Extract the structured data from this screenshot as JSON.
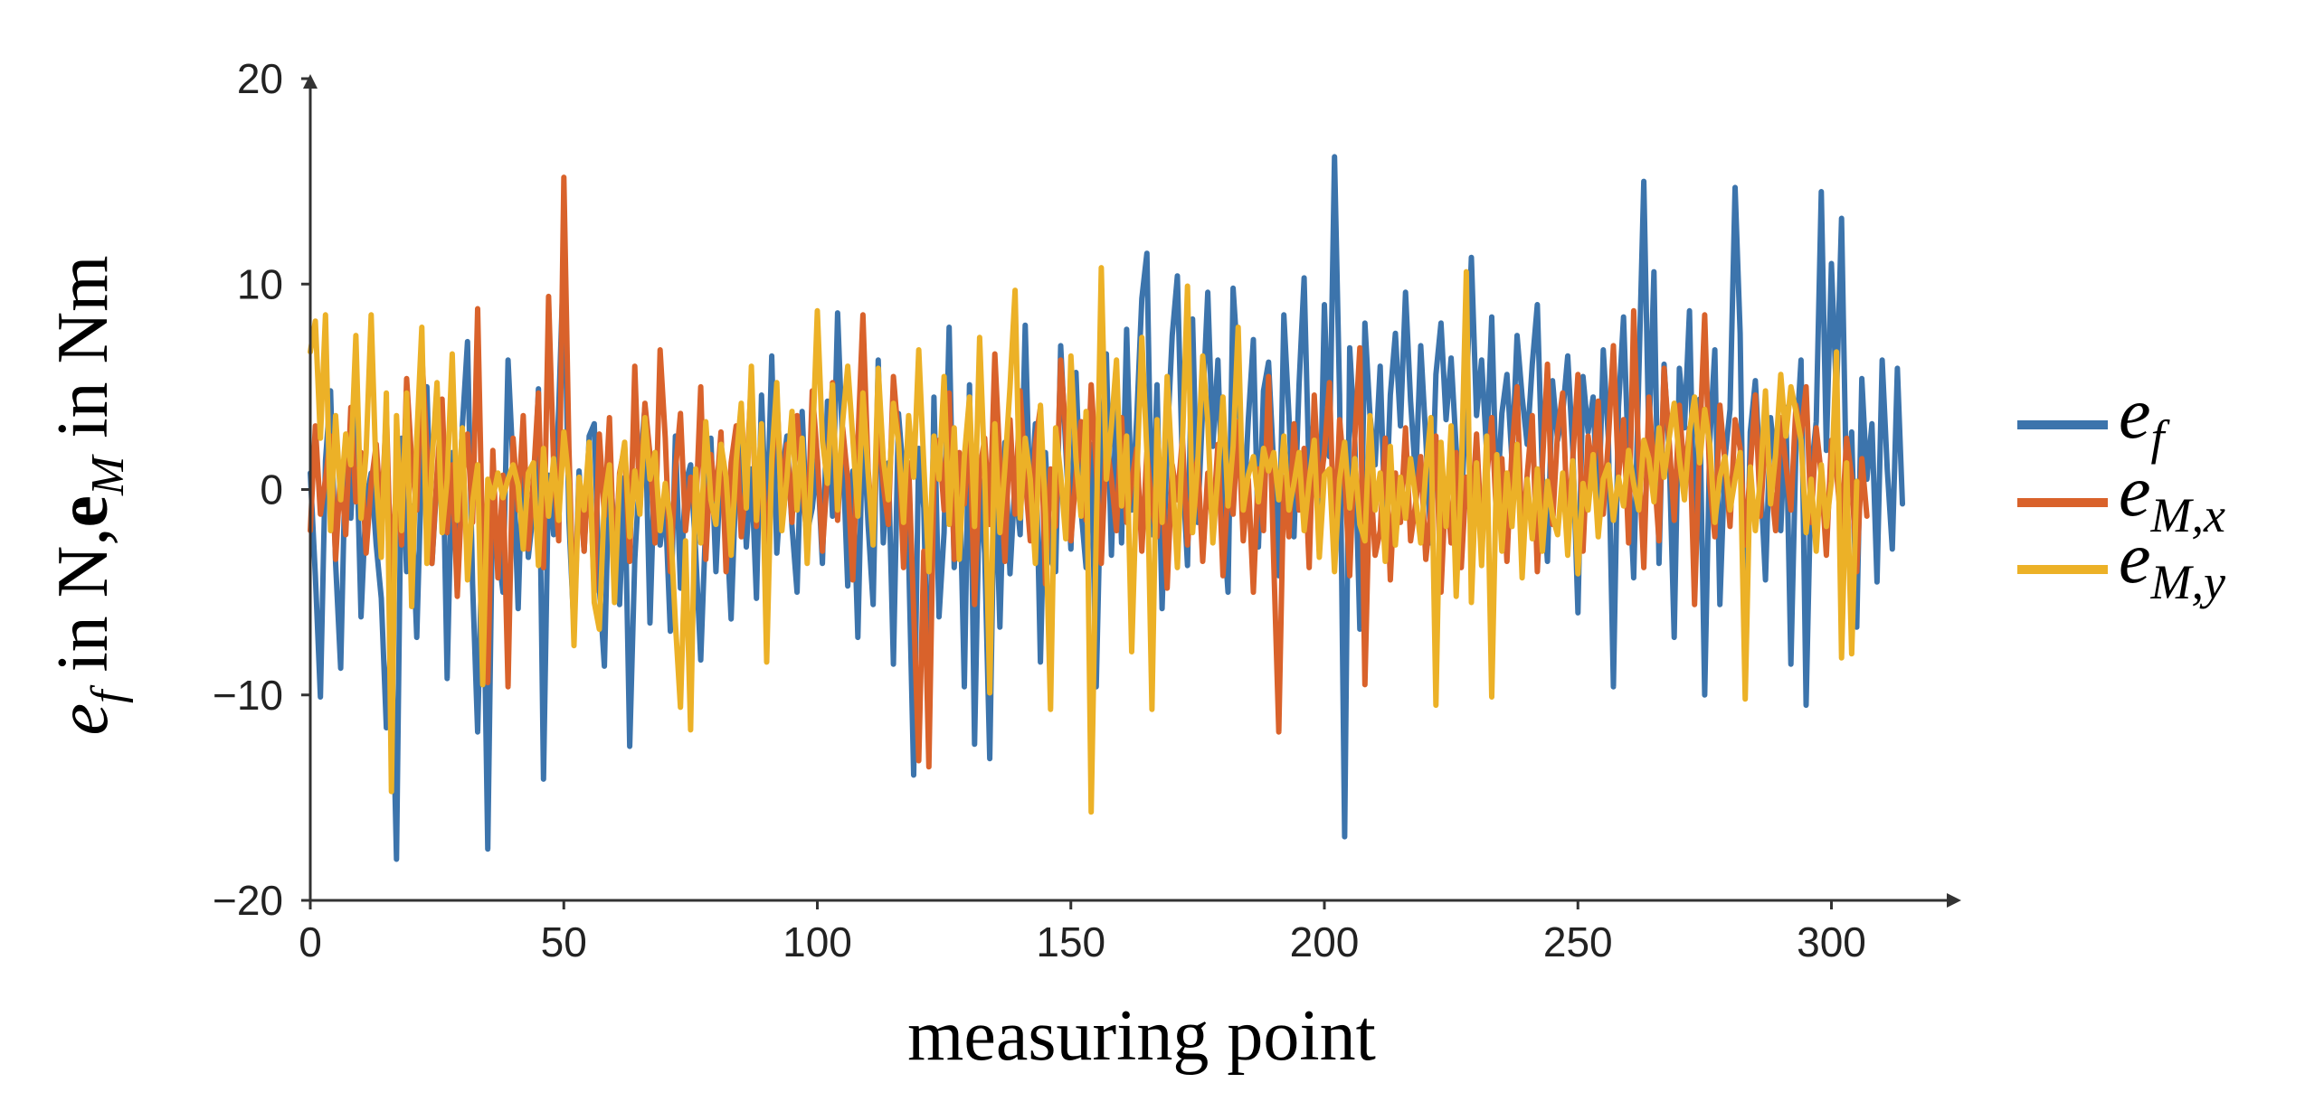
{
  "chart_data": {
    "type": "line",
    "xlabel": "measuring point",
    "ylabel": "e_f in N,e_M in Nm",
    "xlim": [
      0,
      323
    ],
    "ylim": [
      -20,
      20
    ],
    "xticks": [
      0,
      50,
      100,
      150,
      200,
      250,
      300
    ],
    "yticks": [
      20,
      10,
      0,
      -10,
      -20
    ],
    "xtick_labels": [
      "0",
      "50",
      "100",
      "150",
      "200",
      "250",
      "300"
    ],
    "ytick_labels": [
      "20",
      "10",
      "0",
      "−10",
      "−20"
    ],
    "grid": false,
    "legend_position": "right",
    "series": [
      {
        "name": "e_f",
        "legend_base": "e",
        "legend_sub": "f",
        "color": "#3c74ac",
        "values": [
          0.8,
          -4.2,
          -10.1,
          1.4,
          4.8,
          -3.6,
          -8.7,
          2.2,
          -1.4,
          3.5,
          -6.2,
          -0.5,
          0.8,
          -2.7,
          -5.3,
          -11.6,
          -6.8,
          -18.0,
          2.5,
          -4.0,
          -0.8,
          -7.2,
          1.6,
          5.0,
          -3.6,
          0.5,
          4.0,
          -9.2,
          1.8,
          -2.5,
          3.1,
          7.2,
          -4.6,
          -11.8,
          -1.5,
          -17.5,
          0.4,
          -2.9,
          -5.0,
          6.3,
          1.1,
          -5.8,
          2.7,
          -3.3,
          -1.0,
          4.9,
          -14.1,
          0.7,
          -2.2,
          3.9,
          11.5,
          -1.5,
          -6.8,
          0.9,
          -3.0,
          2.6,
          3.2,
          -4.7,
          -8.6,
          1.5,
          -2.3,
          -5.6,
          0.6,
          -12.5,
          -3.4,
          1.0,
          4.0,
          -6.5,
          1.8,
          -2.7,
          -0.7,
          -6.9,
          2.6,
          -4.8,
          0.3,
          1.2,
          -3.0,
          -8.3,
          -1.5,
          2.5,
          -4.0,
          1.4,
          -1.2,
          -6.3,
          0.7,
          3.1,
          -2.8,
          1.0,
          -5.3,
          4.6,
          -2.3,
          6.5,
          -3.1,
          0.7,
          2.6,
          -1.8,
          -5.0,
          3.8,
          -2.1,
          -0.9,
          1.5,
          -3.6,
          4.3,
          -1.3,
          8.6,
          2.0,
          -4.7,
          0.9,
          -7.2,
          3.5,
          -1.7,
          -5.6,
          6.3,
          -2.6,
          1.3,
          -8.5,
          3.7,
          0.6,
          -3.2,
          -13.9,
          2.0,
          -0.9,
          -11.6,
          4.5,
          -6.2,
          -2.1,
          7.9,
          -3.8,
          1.3,
          -9.6,
          5.1,
          -12.4,
          0.5,
          -3.1,
          -13.1,
          1.7,
          -6.7,
          2.3,
          -4.1,
          0.5,
          -2.2,
          8.0,
          -1.3,
          3.2,
          -8.4,
          1.8,
          -3.4,
          -4.0,
          7.0,
          2.0,
          -2.9,
          5.7,
          -1.0,
          -3.8,
          2.2,
          -9.6,
          1.3,
          6.6,
          -3.2,
          4.6,
          -2.6,
          7.8,
          -1.0,
          3.5,
          9.3,
          11.5,
          -2.2,
          5.1,
          -5.8,
          2.3,
          7.5,
          10.4,
          1.0,
          -3.7,
          8.3,
          -1.6,
          4.0,
          9.6,
          2.1,
          6.3,
          -1.3,
          -5.0,
          9.8,
          5.9,
          -1.6,
          3.4,
          7.3,
          -2.8,
          4.8,
          6.2,
          1.1,
          -4.2,
          8.5,
          3.6,
          -2.3,
          5.1,
          10.3,
          0.5,
          3.6,
          -3.0,
          9.0,
          1.6,
          16.2,
          4.6,
          -16.9,
          6.9,
          2.4,
          -6.8,
          8.1,
          3.6,
          1.2,
          6.0,
          -2.0,
          4.6,
          7.6,
          3.1,
          9.6,
          4.3,
          0.5,
          7.0,
          2.5,
          -2.6,
          5.6,
          8.1,
          3.4,
          6.4,
          2.0,
          -1.0,
          4.5,
          11.3,
          3.6,
          6.3,
          1.8,
          8.4,
          -0.8,
          3.7,
          5.6,
          1.4,
          7.5,
          4.5,
          2.2,
          6.1,
          9.0,
          0.6,
          -3.5,
          5.3,
          2.4,
          3.7,
          6.5,
          1.9,
          -6.0,
          5.5,
          2.8,
          4.5,
          -1.7,
          6.8,
          2.5,
          -9.6,
          4.0,
          8.4,
          1.1,
          -4.3,
          5.4,
          15.0,
          2.3,
          10.6,
          -3.6,
          6.1,
          1.8,
          -7.2,
          5.9,
          3.0,
          8.7,
          -2.7,
          4.4,
          -10.0,
          2.3,
          6.8,
          -5.6,
          1.5,
          3.9,
          14.7,
          7.6,
          -9.0,
          2.8,
          5.3,
          0.6,
          -4.4,
          3.5,
          1.1,
          -2.0,
          4.0,
          -8.5,
          2.1,
          6.3,
          -10.5,
          0.8,
          3.3,
          14.5,
          1.9,
          11.0,
          4.5,
          13.2,
          -0.6,
          2.8,
          -6.7,
          5.4,
          0.5,
          3.2,
          -4.5,
          6.3,
          1.0,
          -2.9,
          5.9,
          -0.7
        ]
      },
      {
        "name": "e_M,x",
        "legend_base": "e",
        "legend_sub": "M,x",
        "color": "#d9622b",
        "values": [
          -2.0,
          3.1,
          -1.2,
          0.5,
          2.6,
          -3.4,
          1.0,
          -2.2,
          4.0,
          -0.6,
          1.8,
          -3.1,
          0.3,
          2.2,
          -1.5,
          3.8,
          -4.8,
          0.6,
          -2.7,
          5.4,
          1.4,
          -1.0,
          6.6,
          2.0,
          -3.6,
          0.8,
          4.4,
          -2.1,
          1.2,
          -5.2,
          0.4,
          2.7,
          -1.6,
          8.8,
          -3.0,
          -9.4,
          1.9,
          -4.3,
          0.7,
          -9.6,
          2.5,
          -1.0,
          3.6,
          -2.9,
          0.5,
          4.7,
          -3.8,
          9.4,
          1.2,
          -2.5,
          15.2,
          2.0,
          -6.8,
          0.4,
          -3.0,
          1.6,
          -5.0,
          2.7,
          -1.3,
          3.5,
          -4.3,
          0.8,
          2.1,
          -3.5,
          6.0,
          -1.1,
          4.2,
          1.7,
          -2.6,
          6.8,
          2.5,
          -4.0,
          0.9,
          3.7,
          -2.0,
          0.6,
          -1.3,
          5.0,
          -3.4,
          1.7,
          -0.5,
          2.8,
          -4.0,
          1.3,
          3.1,
          -2.3,
          0.4,
          5.4,
          -1.8,
          2.1,
          -3.2,
          1.0,
          4.5,
          -0.4,
          2.2,
          -1.6,
          3.6,
          0.3,
          -2.5,
          4.8,
          1.6,
          -3.0,
          0.8,
          5.2,
          -1.5,
          3.0,
          0.5,
          -4.4,
          2.3,
          8.5,
          1.0,
          -2.3,
          3.7,
          0.2,
          -1.7,
          5.5,
          2.5,
          -3.8,
          1.3,
          -5.9,
          -13.2,
          -3.0,
          -13.5,
          0.5,
          2.4,
          -1.0,
          4.7,
          -3.4,
          1.8,
          -0.7,
          3.2,
          -5.6,
          0.9,
          2.5,
          -1.7,
          6.6,
          1.3,
          -3.5,
          3.4,
          -1.2,
          4.8,
          0.6,
          -2.5,
          2.2,
          4.0,
          -4.6,
          1.0,
          -1.8,
          6.3,
          2.8,
          -2.5,
          0.7,
          3.3,
          -1.5,
          5.1,
          1.1,
          -3.6,
          2.4,
          0.5,
          -2.0,
          3.5,
          -1.6,
          0.4,
          2.0,
          -3.0,
          1.8,
          -0.8,
          -2.3,
          0.6,
          -4.8,
          1.2,
          -0.5,
          2.5,
          -2.7,
          0.3,
          1.5,
          -3.5,
          0.8,
          -1.8,
          2.2,
          -4.2,
          0.1,
          -1.2,
          3.3,
          -2.5,
          0.5,
          -5.0,
          1.0,
          -2.0,
          5.5,
          -3.5,
          -11.8,
          0.6,
          -2.3,
          3.2,
          -1.0,
          2.0,
          -3.8,
          4.6,
          -0.3,
          1.8,
          5.2,
          -2.8,
          3.4,
          0.6,
          -4.2,
          2.5,
          6.9,
          -9.5,
          1.0,
          -3.2,
          -2.0,
          2.5,
          -4.4,
          0.8,
          -1.6,
          3.0,
          -2.5,
          -0.7,
          1.6,
          -3.4,
          -1.0,
          2.6,
          -5.0,
          0.5,
          -2.6,
          1.8,
          -3.8,
          0.6,
          -1.5,
          2.7,
          -2.2,
          0.5,
          3.5,
          -1.7,
          1.5,
          -3.5,
          2.0,
          5.0,
          -2.6,
          0.7,
          3.6,
          -4.0,
          1.2,
          6.1,
          -1.7,
          2.8,
          4.7,
          -2.0,
          1.5,
          5.6,
          -3.0,
          2.6,
          0.8,
          4.3,
          -1.2,
          2.4,
          7.0,
          0.6,
          3.4,
          -2.6,
          8.7,
          1.5,
          -3.8,
          4.5,
          1.0,
          -2.5,
          5.9,
          2.4,
          -1.5,
          4.1,
          0.5,
          3.0,
          -5.6,
          2.2,
          8.5,
          0.3,
          -2.3,
          4.1,
          1.3,
          -1.8,
          3.4,
          2.0,
          -2.7,
          1.0,
          4.6,
          -1.3,
          2.7,
          0.5,
          -2.0,
          3.5,
          1.2,
          -1.0,
          4.1,
          2.6,
          5.0,
          -1.6,
          3.0,
          0.7,
          -3.2,
          2.4,
          0.9,
          -2.0,
          2.5,
          0.6,
          -4.0,
          1.5,
          -1.3
        ]
      },
      {
        "name": "e_M,y",
        "legend_base": "e",
        "legend_sub": "M,y",
        "color": "#ecb127",
        "values": [
          6.7,
          8.2,
          2.5,
          8.5,
          -2.0,
          3.6,
          -0.5,
          2.7,
          1.2,
          7.5,
          -1.4,
          1.8,
          8.5,
          0.5,
          -3.3,
          4.7,
          -14.7,
          3.6,
          -2.0,
          4.7,
          -5.7,
          2.5,
          7.9,
          -3.6,
          1.3,
          5.2,
          -2.1,
          0.5,
          6.6,
          -1.5,
          3.0,
          -4.4,
          -0.6,
          1.2,
          -9.5,
          0.5,
          -0.4,
          0.8,
          -0.4,
          0.5,
          1.2,
          0.2,
          -2.9,
          0.8,
          1.3,
          -3.7,
          2.0,
          -1.3,
          1.5,
          -1.5,
          2.8,
          0.4,
          -7.6,
          0.6,
          -1.0,
          2.3,
          -5.5,
          -6.8,
          -0.5,
          1.2,
          -5.5,
          0.6,
          2.3,
          -2.3,
          0.9,
          -1.2,
          3.5,
          0.5,
          1.8,
          -2.0,
          0.3,
          -1.5,
          -6.5,
          -10.6,
          -2.5,
          -11.7,
          1.0,
          -2.6,
          3.3,
          -0.5,
          -1.7,
          2.2,
          0.6,
          -3.2,
          1.4,
          4.2,
          -0.9,
          6.0,
          -1.5,
          3.2,
          -8.4,
          1.5,
          5.2,
          -2.0,
          0.6,
          3.8,
          -1.0,
          2.5,
          -3.6,
          1.8,
          8.7,
          2.4,
          0.3,
          5.1,
          -1.0,
          3.3,
          6.0,
          2.5,
          -1.3,
          4.7,
          0.8,
          -2.7,
          5.9,
          1.5,
          -0.5,
          4.2,
          2.3,
          -1.6,
          3.6,
          0.6,
          6.8,
          1.2,
          -4.0,
          2.6,
          0.5,
          5.5,
          -1.7,
          3.0,
          -3.4,
          1.6,
          4.5,
          -1.8,
          7.4,
          0.8,
          -9.9,
          3.2,
          -2.1,
          1.1,
          5.0,
          9.7,
          -1.4,
          2.5,
          0.5,
          -3.6,
          4.1,
          -1.2,
          -10.7,
          3.0,
          0.7,
          -2.4,
          6.5,
          1.5,
          -1.3,
          3.8,
          -15.7,
          -2.1,
          10.8,
          0.5,
          3.1,
          6.3,
          -0.8,
          2.6,
          -7.9,
          0.5,
          7.4,
          1.8,
          -10.7,
          3.4,
          -1.6,
          5.5,
          0.9,
          -3.8,
          2.3,
          9.9,
          -2.1,
          1.2,
          6.5,
          3.3,
          -2.6,
          0.7,
          4.5,
          -0.8,
          2.1,
          7.9,
          -1.0,
          0.7,
          1.6,
          -0.6,
          2.0,
          0.9,
          1.8,
          -0.5,
          2.6,
          -1.0,
          0.3,
          1.8,
          -2.0,
          0.4,
          2.4,
          -3.3,
          0.7,
          1.0,
          -4.0,
          0.5,
          2.3,
          -0.9,
          1.5,
          -1.7,
          -2.5,
          3.6,
          -1.0,
          0.8,
          -3.5,
          2.1,
          -2.7,
          0.6,
          -1.4,
          1.5,
          -0.4,
          -2.6,
          0.9,
          3.5,
          -10.5,
          2.3,
          -1.8,
          3.1,
          -5.2,
          0.6,
          10.6,
          -5.5,
          1.3,
          -3.7,
          2.6,
          -10.1,
          1.7,
          -3.0,
          0.8,
          -1.8,
          2.2,
          -4.3,
          0.5,
          -2.4,
          1.0,
          -3.0,
          0.4,
          -1.3,
          -2.2,
          0.8,
          -3.2,
          1.4,
          -4.1,
          0.3,
          -1.0,
          1.7,
          -2.3,
          0.5,
          1.2,
          -1.5,
          0.6,
          -0.8,
          1.9,
          0.3,
          -1.0,
          2.4,
          1.5,
          -0.6,
          3.0,
          0.6,
          2.5,
          4.2,
          1.5,
          -0.5,
          2.8,
          4.5,
          1.3,
          3.9,
          2.2,
          -1.6,
          0.6,
          1.6,
          -1.0,
          0.5,
          1.8,
          -10.2,
          1.1,
          -2.0,
          0.5,
          4.8,
          -0.7,
          1.7,
          5.6,
          2.6,
          5.0,
          3.8,
          2.4,
          -2.1,
          0.5,
          -3.0,
          1.2,
          -1.8,
          0.4,
          6.7,
          -8.2,
          1.3,
          -8.0,
          0.4
        ]
      }
    ]
  }
}
